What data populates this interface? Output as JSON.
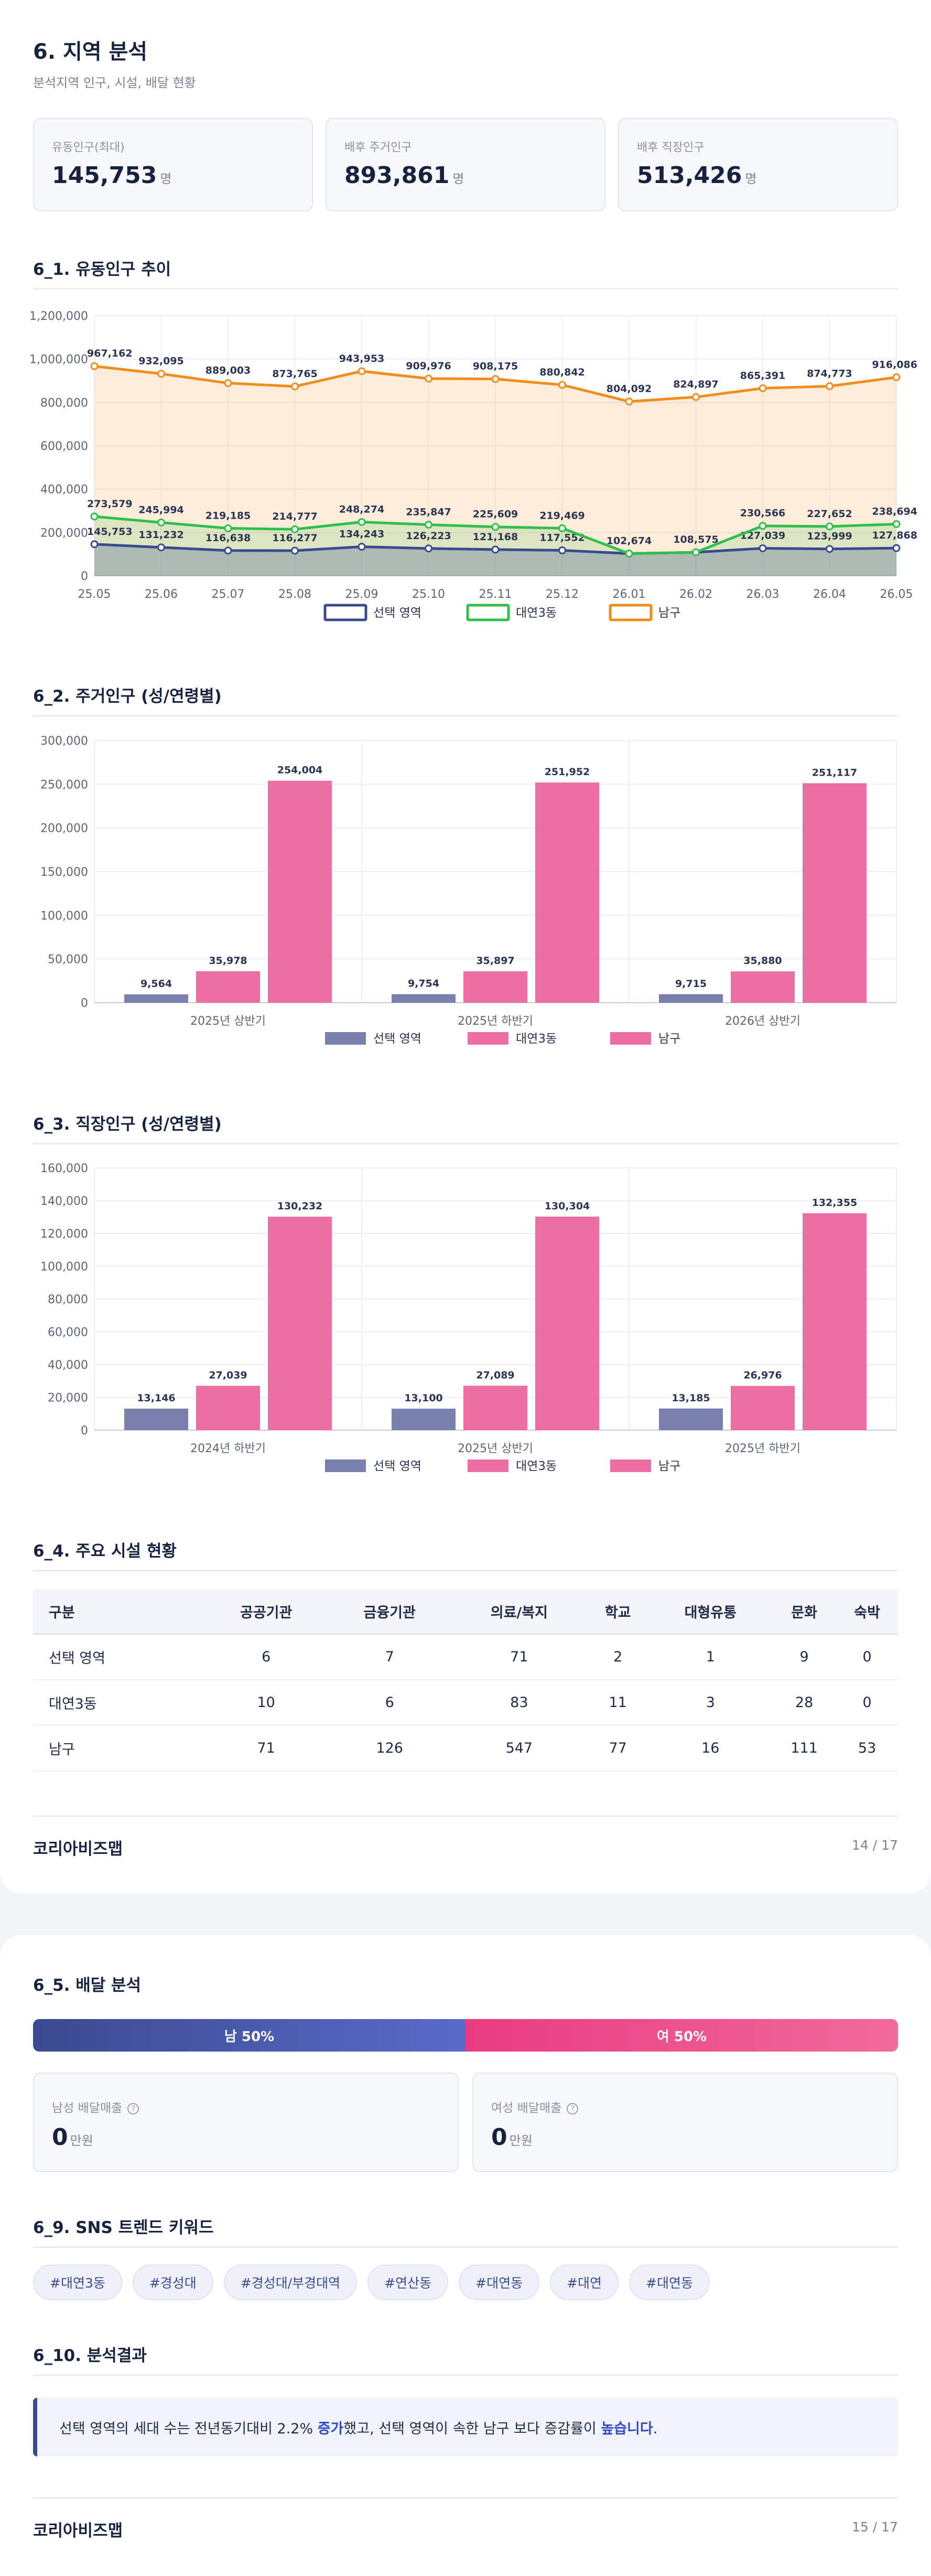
{
  "header": {
    "title": "6. 지역 분석",
    "subtitle": "분석지역 인구, 시설, 배달 현황"
  },
  "stats": [
    {
      "label": "유동인구(최대)",
      "value": "145,753",
      "unit": "명"
    },
    {
      "label": "배후 주거인구",
      "value": "893,861",
      "unit": "명"
    },
    {
      "label": "배후 직장인구",
      "value": "513,426",
      "unit": "명"
    }
  ],
  "sections": {
    "s61": "6_1. 유동인구 추이",
    "s62": "6_2. 주거인구 (성/연령별)",
    "s63": "6_3. 직장인구 (성/연령별)",
    "s64": "6_4. 주요 시설 현황",
    "s65": "6_5. 배달 분석",
    "s69": "6_9. SNS 트렌드 키워드",
    "s610": "6_10. 분석결과"
  },
  "chart_data": [
    {
      "type": "line",
      "x": [
        "25.05",
        "25.06",
        "25.07",
        "25.08",
        "25.09",
        "25.10",
        "25.11",
        "25.12",
        "26.01",
        "26.02",
        "26.03",
        "26.04",
        "26.05"
      ],
      "ylim": [
        0,
        1200000
      ],
      "yticks": [
        "0",
        "200,000",
        "400,000",
        "600,000",
        "800,000",
        "1,000,000",
        "1,200,000"
      ],
      "series": [
        {
          "name": "선택 영역",
          "color": "#3a4a8f",
          "values": [
            145753,
            131232,
            116638,
            116277,
            134243,
            126223,
            121168,
            117552,
            102674,
            108575,
            127039,
            123999,
            127868
          ],
          "labels": [
            "145,753",
            "131,232",
            "116,638",
            "116,277",
            "134,243",
            "126,223",
            "121,168",
            "117,552",
            "102,674",
            "108,575",
            "127,039",
            "123,999",
            "127,868"
          ]
        },
        {
          "name": "대연3동",
          "color": "#2fbf4a",
          "values": [
            273579,
            245994,
            219185,
            214777,
            248274,
            235847,
            225609,
            219469,
            102674,
            108575,
            230566,
            227652,
            238694
          ],
          "labels": [
            "273,579",
            "245,994",
            "219,185",
            "214,777",
            "248,274",
            "235,847",
            "225,609",
            "219,469",
            "",
            "",
            "230,566",
            "227,652",
            "238,694"
          ]
        },
        {
          "name": "남구",
          "color": "#f28c1a",
          "values": [
            967162,
            932095,
            889003,
            873765,
            943953,
            909976,
            908175,
            880842,
            804092,
            824897,
            865391,
            874773,
            916086
          ],
          "labels": [
            "967,162",
            "932,095",
            "889,003",
            "873,765",
            "943,953",
            "909,976",
            "908,175",
            "880,842",
            "804,092",
            "824,897",
            "865,391",
            "874,773",
            "916,086"
          ]
        }
      ],
      "grid": true,
      "legend": "bottom"
    },
    {
      "type": "bar",
      "categories": [
        "2025년 상반기",
        "2025년 하반기",
        "2026년 상반기"
      ],
      "ylim": [
        0,
        300000
      ],
      "yticks": [
        "0",
        "50,000",
        "100,000",
        "150,000",
        "200,000",
        "250,000",
        "300,000"
      ],
      "series": [
        {
          "name": "선택 영역",
          "color": "#7a80ad",
          "values": [
            9564,
            9754,
            9715
          ],
          "labels": [
            "9,564",
            "9,754",
            "9,715"
          ]
        },
        {
          "name": "대연3동",
          "color": "#ec6fa4",
          "values": [
            35978,
            35897,
            35880
          ],
          "labels": [
            "35,978",
            "35,897",
            "35,880"
          ]
        },
        {
          "name": "남구",
          "color": "#ec6fa4",
          "values": [
            254004,
            251952,
            251117
          ],
          "labels": [
            "254,004",
            "251,952",
            "251,117"
          ]
        }
      ],
      "grid": true,
      "legend": "bottom"
    },
    {
      "type": "bar",
      "categories": [
        "2024년 하반기",
        "2025년 상반기",
        "2025년 하반기"
      ],
      "ylim": [
        0,
        160000
      ],
      "yticks": [
        "0",
        "20,000",
        "40,000",
        "60,000",
        "80,000",
        "100,000",
        "120,000",
        "140,000",
        "160,000"
      ],
      "series": [
        {
          "name": "선택 영역",
          "color": "#7a80ad",
          "values": [
            13146,
            13100,
            13185
          ],
          "labels": [
            "13,146",
            "13,100",
            "13,185"
          ]
        },
        {
          "name": "대연3동",
          "color": "#ec6fa4",
          "values": [
            27039,
            27089,
            26976
          ],
          "labels": [
            "27,039",
            "27,089",
            "26,976"
          ]
        },
        {
          "name": "남구",
          "color": "#ec6fa4",
          "values": [
            130232,
            130304,
            132355
          ],
          "labels": [
            "130,232",
            "130,304",
            "132,355"
          ]
        }
      ],
      "grid": true,
      "legend": "bottom"
    }
  ],
  "facilities": {
    "headers": [
      "구분",
      "공공기관",
      "금융기관",
      "의료/복지",
      "학교",
      "대형유통",
      "문화",
      "숙박"
    ],
    "rows": [
      [
        "선택 영역",
        "6",
        "7",
        "71",
        "2",
        "1",
        "9",
        "0"
      ],
      [
        "대연3동",
        "10",
        "6",
        "83",
        "11",
        "3",
        "28",
        "0"
      ],
      [
        "남구",
        "71",
        "126",
        "547",
        "77",
        "16",
        "111",
        "53"
      ]
    ]
  },
  "footer1": {
    "brand": "코리아비즈맵",
    "page": "14 / 17"
  },
  "delivery": {
    "male_label": "남 50%",
    "female_label": "여 50%",
    "male_share": 50,
    "male_sales_label": "남성 배달매출",
    "female_sales_label": "여성 배달매출",
    "male_sales": "0",
    "female_sales": "0",
    "unit": "만원",
    "help_glyph": "?"
  },
  "sns_tags": [
    "#대연3동",
    "#경성대",
    "#경성대/부경대역",
    "#연산동",
    "#대연동",
    "#대연",
    "#대연동"
  ],
  "result": {
    "part1": "선택 영역의 세대 수는 전년동기대비 2.2% ",
    "hl1": "증가",
    "part2": "했고, 선택 영역이 속한 남구 보다 증감률이 ",
    "hl2": "높습니다",
    "part3": "."
  },
  "footer2": {
    "brand": "코리아비즈맵",
    "page": "15 / 17"
  },
  "colors": {
    "navy": "#3a4a8f",
    "pink": "#ec6fa4",
    "orange": "#f28c1a",
    "green": "#2fbf4a"
  }
}
